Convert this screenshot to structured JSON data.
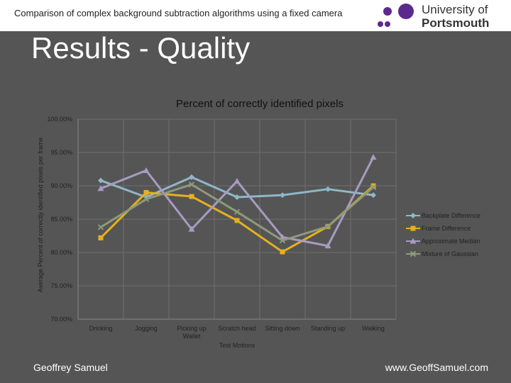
{
  "header": {
    "subtitle": "Comparison of complex background subtraction algorithms using a fixed camera",
    "logo_line1": "University of",
    "logo_line2": "Portsmouth"
  },
  "slide_title": "Results - Quality",
  "footer": {
    "author": "Geoffrey Samuel",
    "website": "www.GeoffSamuel.com"
  },
  "colors": {
    "background": "#555555",
    "header_bg": "#ffffff",
    "logo_purple": "#5c2a8c",
    "grid": "#6e6e6e"
  },
  "chart_data": {
    "type": "line",
    "title": "Percent of correctly identified pixels",
    "xlabel": "Test Motions",
    "ylabel": "Average Percent of correctly identified pixels per frame",
    "categories": [
      "Drinking",
      "Jogging",
      "Picking up Wallet",
      "Scratch head",
      "Sitting down",
      "Standing up",
      "Walking"
    ],
    "ylim": [
      70,
      100
    ],
    "yticks": [
      100,
      95,
      90,
      85,
      80,
      75,
      70
    ],
    "ytick_labels": [
      "100.00%",
      "95.00%",
      "90.00%",
      "85.00%",
      "80.00%",
      "75.00%",
      "70.00%"
    ],
    "grid": true,
    "legend_position": "right",
    "series": [
      {
        "name": "Backplate Difference",
        "color": "#8fb7c9",
        "marker": "diamond",
        "values": [
          90.8,
          88.3,
          91.3,
          88.3,
          88.6,
          89.5,
          88.6
        ]
      },
      {
        "name": "Frame Difference",
        "color": "#e6b01e",
        "marker": "square",
        "values": [
          82.2,
          89.0,
          88.4,
          84.8,
          80.1,
          83.9,
          90.0
        ]
      },
      {
        "name": "Approximate Median",
        "color": "#a99bc2",
        "marker": "triangle",
        "values": [
          89.6,
          92.3,
          83.5,
          90.7,
          82.3,
          81.0,
          94.3
        ]
      },
      {
        "name": "Mixture of Gaussian",
        "color": "#8e9a7a",
        "marker": "x",
        "values": [
          83.8,
          88.0,
          90.2,
          86.1,
          81.8,
          83.9,
          89.8
        ]
      }
    ]
  }
}
